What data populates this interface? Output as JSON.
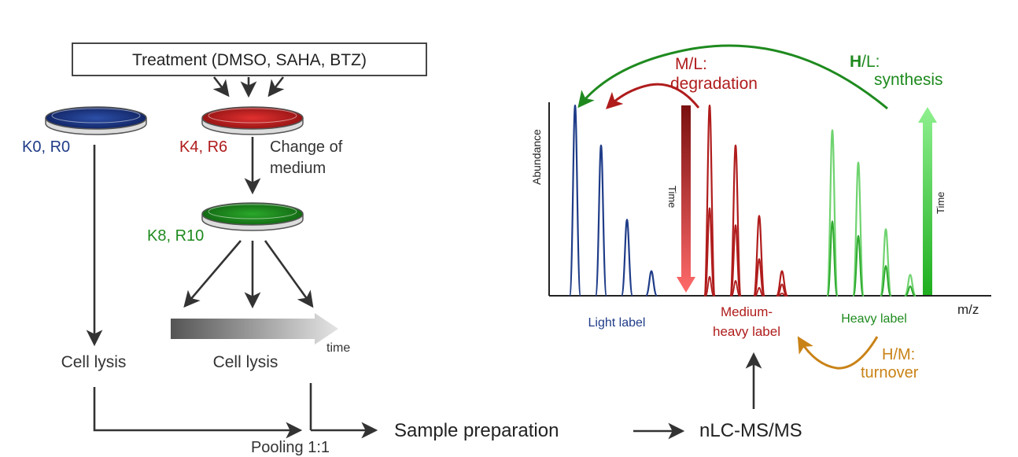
{
  "workflow": {
    "treatment_label": "Treatment (DMSO, SAHA, BTZ)",
    "dish_light_label": "K0, R0",
    "dish_medium_label": "K4, R6",
    "dish_heavy_label": "K8, R10",
    "change_medium_line1": "Change of",
    "change_medium_line2": "medium",
    "time_label": "time",
    "cell_lysis_left": "Cell lysis",
    "cell_lysis_right": "Cell lysis",
    "pooling_label": "Pooling 1:1",
    "sample_prep_label": "Sample preparation",
    "nlc_label": "nLC-MS/MS"
  },
  "spectrum": {
    "y_axis_label": "Abundance",
    "x_axis_label": "m/z",
    "time_label_medium": "Time",
    "time_label_heavy": "Time",
    "light_label": "Light label",
    "medium_label_line1": "Medium-",
    "medium_label_line2": "heavy label",
    "heavy_label": "Heavy label",
    "ml_line1": "M/L:",
    "ml_line2": "degradation",
    "hl_bold": "H",
    "hl_rest": "/L:",
    "hl_line2": "synthesis",
    "hm_line1": "H/M:",
    "hm_line2": "turnover"
  },
  "colors": {
    "light": "#1f3c88",
    "medium": "#b01c1c",
    "heavy": "#1e8a1e",
    "heavy_light": "#6fd36f",
    "turnover": "#c98216",
    "dark": "#333333"
  },
  "chart_data": {
    "type": "line",
    "xlabel": "m/z",
    "ylabel": "Abundance",
    "series": [
      {
        "name": "Light label",
        "values": [
          1.0,
          0.79,
          0.4,
          0.13
        ]
      },
      {
        "name": "Medium-heavy label",
        "values": [
          1.0,
          0.79,
          0.42,
          0.13
        ]
      },
      {
        "name": "Heavy label",
        "values": [
          0.87,
          0.7,
          0.35,
          0.11
        ]
      }
    ]
  }
}
